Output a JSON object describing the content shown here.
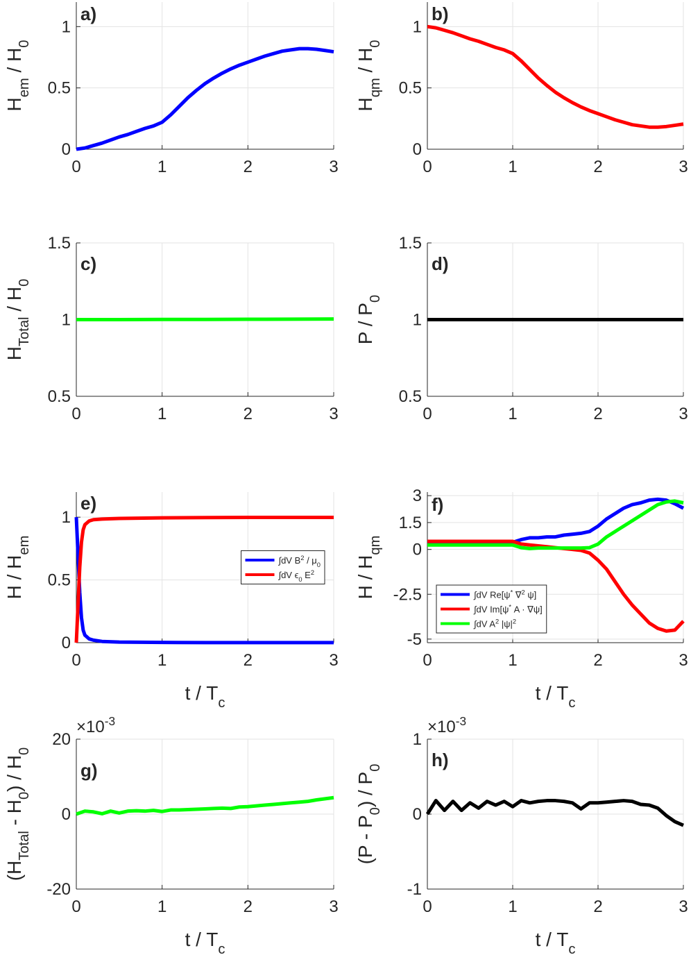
{
  "chart_data": [
    {
      "type": "line",
      "panel_label": "a)",
      "grid": true,
      "ylabel": [
        {
          "text": "H"
        },
        {
          "text": "em",
          "sub": true
        },
        {
          "text": " / H"
        },
        {
          "text": "0",
          "sub": true
        }
      ],
      "x": [
        0,
        0.1,
        0.2,
        0.3,
        0.4,
        0.5,
        0.6,
        0.7,
        0.8,
        0.9,
        1,
        1.1,
        1.2,
        1.3,
        1.4,
        1.5,
        1.6,
        1.7,
        1.8,
        1.9,
        2,
        2.1,
        2.2,
        2.3,
        2.4,
        2.5,
        2.6,
        2.7,
        2.8,
        2.9,
        3
      ],
      "series": [
        {
          "color": "#0000ff",
          "values": [
            0,
            0.01,
            0.03,
            0.05,
            0.075,
            0.1,
            0.12,
            0.145,
            0.17,
            0.19,
            0.22,
            0.28,
            0.35,
            0.42,
            0.48,
            0.535,
            0.58,
            0.62,
            0.655,
            0.685,
            0.71,
            0.735,
            0.76,
            0.78,
            0.8,
            0.81,
            0.82,
            0.82,
            0.815,
            0.805,
            0.795
          ]
        }
      ],
      "xlim": [
        0,
        3
      ],
      "xticks": [
        0,
        1,
        2,
        3
      ],
      "ylim": [
        0,
        1.2
      ],
      "yticks": [
        0,
        0.5,
        1
      ]
    },
    {
      "type": "line",
      "panel_label": "b)",
      "grid": true,
      "ylabel": [
        {
          "text": "H"
        },
        {
          "text": "qm",
          "sub": true
        },
        {
          "text": " / H"
        },
        {
          "text": "0",
          "sub": true
        }
      ],
      "x": [
        0,
        0.1,
        0.2,
        0.3,
        0.4,
        0.5,
        0.6,
        0.7,
        0.8,
        0.9,
        1,
        1.1,
        1.2,
        1.3,
        1.4,
        1.5,
        1.6,
        1.7,
        1.8,
        1.9,
        2,
        2.1,
        2.2,
        2.3,
        2.4,
        2.5,
        2.6,
        2.7,
        2.8,
        2.9,
        3
      ],
      "series": [
        {
          "color": "#ff0000",
          "values": [
            1,
            0.99,
            0.97,
            0.95,
            0.925,
            0.9,
            0.88,
            0.855,
            0.83,
            0.81,
            0.78,
            0.72,
            0.65,
            0.58,
            0.52,
            0.465,
            0.42,
            0.38,
            0.345,
            0.315,
            0.29,
            0.265,
            0.24,
            0.22,
            0.2,
            0.19,
            0.18,
            0.18,
            0.185,
            0.195,
            0.205
          ]
        }
      ],
      "xlim": [
        0,
        3
      ],
      "xticks": [
        0,
        1,
        2,
        3
      ],
      "ylim": [
        0,
        1.2
      ],
      "yticks": [
        0,
        0.5,
        1
      ]
    },
    {
      "type": "line",
      "panel_label": "c)",
      "grid": true,
      "ylabel": [
        {
          "text": "H"
        },
        {
          "text": "Total",
          "sub": true
        },
        {
          "text": " / H"
        },
        {
          "text": "0",
          "sub": true
        }
      ],
      "x": [
        0,
        0.5,
        1,
        1.5,
        2,
        2.5,
        3
      ],
      "series": [
        {
          "color": "#00ff00",
          "values": [
            1,
            1,
            1.001,
            1.001,
            1.002,
            1.003,
            1.004
          ]
        }
      ],
      "xlim": [
        0,
        3
      ],
      "xticks": [
        0,
        1,
        2,
        3
      ],
      "ylim": [
        0.5,
        1.5
      ],
      "yticks": [
        0.5,
        1,
        1.5
      ]
    },
    {
      "type": "line",
      "panel_label": "d)",
      "grid": true,
      "ylabel": [
        {
          "text": "P / P"
        },
        {
          "text": "0",
          "sub": true
        }
      ],
      "x": [
        0,
        3
      ],
      "series": [
        {
          "color": "#000000",
          "values": [
            1,
            1
          ]
        }
      ],
      "xlim": [
        0,
        3
      ],
      "xticks": [
        0,
        1,
        2,
        3
      ],
      "ylim": [
        0.5,
        1.5
      ],
      "yticks": [
        0.5,
        1,
        1.5
      ]
    },
    {
      "type": "line",
      "panel_label": "e)",
      "grid": true,
      "legend": "center-right",
      "ylabel": [
        {
          "text": "H / H"
        },
        {
          "text": "em",
          "sub": true
        }
      ],
      "xlabel": [
        {
          "text": "t / T"
        },
        {
          "text": "c",
          "sub": true
        }
      ],
      "x": [
        0,
        0.02,
        0.04,
        0.06,
        0.08,
        0.1,
        0.15,
        0.2,
        0.3,
        0.5,
        1,
        1.5,
        2,
        2.5,
        3
      ],
      "series": [
        {
          "name": [
            {
              "text": "∫dV B"
            },
            {
              "text": "2",
              "sup": true
            },
            {
              "text": " / μ"
            },
            {
              "text": "0",
              "sub": true
            }
          ],
          "color": "#0000ff",
          "values": [
            1,
            0.7,
            0.4,
            0.2,
            0.1,
            0.06,
            0.03,
            0.02,
            0.01,
            0.005,
            0.002,
            0.001,
            0.001,
            0.001,
            0.001
          ]
        },
        {
          "name": [
            {
              "text": "∫dV ϵ"
            },
            {
              "text": "0",
              "sub": true
            },
            {
              "text": " E"
            },
            {
              "text": "2",
              "sup": true
            }
          ],
          "color": "#ff0000",
          "values": [
            0,
            0.3,
            0.6,
            0.8,
            0.9,
            0.94,
            0.97,
            0.98,
            0.985,
            0.99,
            0.995,
            0.997,
            0.998,
            0.998,
            0.998
          ]
        }
      ],
      "xlim": [
        0,
        3
      ],
      "xticks": [
        0,
        1,
        2,
        3
      ],
      "ylim": [
        0,
        1.2
      ],
      "yticks": [
        0,
        0.5,
        1
      ]
    },
    {
      "type": "line",
      "panel_label": "f)",
      "grid": true,
      "legend": "lower-left",
      "ylabel": [
        {
          "text": "H / H"
        },
        {
          "text": "qm",
          "sub": true
        }
      ],
      "xlabel": [
        {
          "text": "t / T"
        },
        {
          "text": "c",
          "sub": true
        }
      ],
      "x": [
        0,
        0.1,
        0.2,
        0.3,
        0.4,
        0.5,
        0.6,
        0.7,
        0.8,
        0.9,
        1,
        1.1,
        1.2,
        1.3,
        1.4,
        1.5,
        1.6,
        1.7,
        1.8,
        1.9,
        2,
        2.1,
        2.2,
        2.3,
        2.4,
        2.5,
        2.6,
        2.7,
        2.8,
        2.9,
        3
      ],
      "series": [
        {
          "name": [
            {
              "text": "∫dV Re[ψ"
            },
            {
              "text": "*",
              "sup": true
            },
            {
              "text": " ∇"
            },
            {
              "text": "2",
              "sup": true
            },
            {
              "text": " ψ]"
            }
          ],
          "color": "#0000ff",
          "values": [
            0.4,
            0.4,
            0.4,
            0.4,
            0.4,
            0.4,
            0.4,
            0.4,
            0.4,
            0.4,
            0.4,
            0.55,
            0.65,
            0.65,
            0.7,
            0.7,
            0.8,
            0.85,
            0.9,
            1.0,
            1.3,
            1.7,
            2.0,
            2.3,
            2.5,
            2.6,
            2.75,
            2.8,
            2.75,
            2.55,
            2.3
          ]
        },
        {
          "name": [
            {
              "text": "∫dV Im[ψ"
            },
            {
              "text": "*",
              "sup": true
            },
            {
              "text": " A · ∇ψ]"
            }
          ],
          "color": "#ff0000",
          "values": [
            0.45,
            0.45,
            0.45,
            0.45,
            0.45,
            0.45,
            0.45,
            0.45,
            0.45,
            0.45,
            0.45,
            0.3,
            0.25,
            0.2,
            0.15,
            0.1,
            0.05,
            0,
            -0.05,
            -0.2,
            -0.6,
            -1.1,
            -1.8,
            -2.5,
            -3.1,
            -3.6,
            -4.1,
            -4.4,
            -4.55,
            -4.5,
            -4.0
          ]
        },
        {
          "name": [
            {
              "text": "∫dV A"
            },
            {
              "text": "2",
              "sup": true
            },
            {
              "text": " |ψ|"
            },
            {
              "text": "2",
              "sup": true
            }
          ],
          "color": "#00ff00",
          "values": [
            0.25,
            0.25,
            0.25,
            0.25,
            0.25,
            0.25,
            0.25,
            0.25,
            0.25,
            0.25,
            0.25,
            0.1,
            0.05,
            0.08,
            0.08,
            0.08,
            0.08,
            0.08,
            0.08,
            0.1,
            0.3,
            0.7,
            1.0,
            1.3,
            1.6,
            1.9,
            2.2,
            2.5,
            2.65,
            2.7,
            2.6
          ]
        }
      ],
      "xlim": [
        0,
        3
      ],
      "xticks": [
        0,
        1,
        2,
        3
      ],
      "ylim": [
        -5.2,
        3.2
      ],
      "yticks": [
        -5,
        -2.5,
        0,
        1.5,
        3
      ]
    },
    {
      "type": "line",
      "panel_label": "g)",
      "grid": true,
      "exponent": [
        {
          "text": "×10"
        },
        {
          "text": "-3",
          "sup": true
        }
      ],
      "ylabel": [
        {
          "text": "(H"
        },
        {
          "text": "Total",
          "sub": true
        },
        {
          "text": " - H"
        },
        {
          "text": "0",
          "sub": true
        },
        {
          "text": ") / H"
        },
        {
          "text": "0",
          "sub": true
        }
      ],
      "xlabel": [
        {
          "text": "t / T"
        },
        {
          "text": "c",
          "sub": true
        }
      ],
      "x": [
        0,
        0.1,
        0.2,
        0.3,
        0.4,
        0.5,
        0.6,
        0.7,
        0.8,
        0.9,
        1,
        1.1,
        1.2,
        1.3,
        1.4,
        1.5,
        1.6,
        1.7,
        1.8,
        1.9,
        2,
        2.1,
        2.2,
        2.3,
        2.4,
        2.5,
        2.6,
        2.7,
        2.8,
        2.9,
        3
      ],
      "series": [
        {
          "color": "#00ff00",
          "values": [
            0,
            0.8,
            0.6,
            0.1,
            0.8,
            0.3,
            0.8,
            0.9,
            0.8,
            1.0,
            0.7,
            1.1,
            1.1,
            1.2,
            1.3,
            1.4,
            1.5,
            1.6,
            1.5,
            1.9,
            2.0,
            2.2,
            2.4,
            2.6,
            2.8,
            3.0,
            3.2,
            3.4,
            3.8,
            4.1,
            4.4
          ]
        }
      ],
      "xlim": [
        0,
        3
      ],
      "xticks": [
        0,
        1,
        2,
        3
      ],
      "ylim": [
        -20,
        20
      ],
      "yticks": [
        -20,
        0,
        20
      ]
    },
    {
      "type": "line",
      "panel_label": "h)",
      "grid": true,
      "exponent": [
        {
          "text": "×10"
        },
        {
          "text": "-3",
          "sup": true
        }
      ],
      "ylabel": [
        {
          "text": "(P - P"
        },
        {
          "text": "0",
          "sub": true
        },
        {
          "text": ") / P"
        },
        {
          "text": "0",
          "sub": true
        }
      ],
      "xlabel": [
        {
          "text": "t / T"
        },
        {
          "text": "c",
          "sub": true
        }
      ],
      "x": [
        0,
        0.1,
        0.2,
        0.3,
        0.4,
        0.5,
        0.6,
        0.7,
        0.8,
        0.9,
        1,
        1.1,
        1.2,
        1.3,
        1.4,
        1.5,
        1.6,
        1.7,
        1.8,
        1.9,
        2,
        2.1,
        2.2,
        2.3,
        2.4,
        2.5,
        2.6,
        2.7,
        2.8,
        2.9,
        3
      ],
      "series": [
        {
          "color": "#000000",
          "values": [
            0,
            0.18,
            0.05,
            0.17,
            0.05,
            0.15,
            0.08,
            0.17,
            0.12,
            0.17,
            0.1,
            0.18,
            0.15,
            0.17,
            0.18,
            0.18,
            0.17,
            0.15,
            0.07,
            0.15,
            0.15,
            0.16,
            0.17,
            0.18,
            0.17,
            0.13,
            0.12,
            0.08,
            -0.02,
            -0.1,
            -0.15
          ]
        }
      ],
      "xlim": [
        0,
        3
      ],
      "xticks": [
        0,
        1,
        2,
        3
      ],
      "ylim": [
        -1,
        1
      ],
      "yticks": [
        -1,
        0,
        1
      ]
    }
  ]
}
